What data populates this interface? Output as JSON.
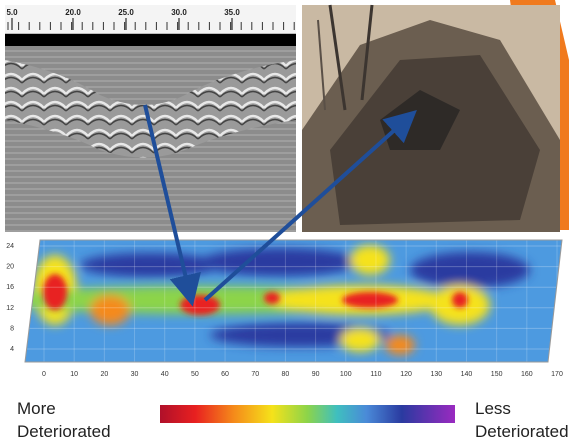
{
  "ruler": {
    "labels": [
      "5.0",
      "20.0",
      "25.0",
      "30.0",
      "35.0"
    ]
  },
  "heatmap": {
    "x_labels": [
      0,
      10,
      20,
      30,
      40,
      50,
      60,
      70,
      80,
      90,
      100,
      110,
      120,
      130,
      140,
      150,
      160,
      170
    ],
    "y_labels": [
      24,
      20,
      16,
      12,
      8,
      4
    ]
  },
  "legend": {
    "left": [
      "More",
      "Deteriorated"
    ],
    "right": [
      "Less",
      "Deteriorated"
    ]
  }
}
